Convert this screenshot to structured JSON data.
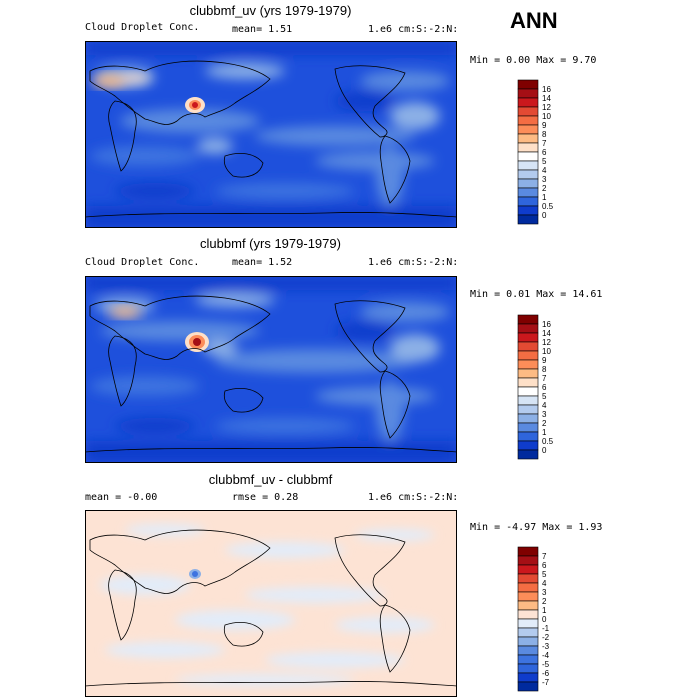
{
  "season": "ANN",
  "panels": [
    {
      "title": "clubbmf_uv (yrs 1979-1979)",
      "left_text": "Cloud Droplet Conc.",
      "mean_text": "mean=   1.51",
      "right_text": "1.e6 cm:S:-2:N:",
      "minmax_text": "Min =   0.00 Max =   9.70"
    },
    {
      "title": "clubbmf (yrs 1979-1979)",
      "left_text": "Cloud Droplet Conc.",
      "mean_text": "mean=   1.52",
      "right_text": "1.e6 cm:S:-2:N:",
      "minmax_text": "Min =  0.01 Max =  14.61"
    },
    {
      "title": "clubbmf_uv - clubbmf",
      "left_text": "mean =   -0.00",
      "mean_text": "rmse =   0.28",
      "right_text": "1.e6 cm:S:-2:N:",
      "minmax_text": "Min =  -4.97 Max =   1.93"
    }
  ],
  "chart_data": [
    {
      "type": "heatmap",
      "title": "clubbmf_uv (yrs 1979-1979)",
      "stats": {
        "mean": 1.51,
        "min": 0.0,
        "max": 9.7
      },
      "colorbar": {
        "labels": [
          "16",
          "14",
          "12",
          "10",
          "9",
          "8",
          "7",
          "6",
          "5",
          "4",
          "3",
          "2",
          "1",
          "0.5",
          "0"
        ],
        "colors": [
          "#7f0000",
          "#a50f15",
          "#cb181d",
          "#e34a33",
          "#f46d43",
          "#fc8d59",
          "#fdbb84",
          "#fee0c8",
          "#ffffff",
          "#d6e4f5",
          "#b3cbee",
          "#8cb0e6",
          "#5a8ae0",
          "#2f65dc",
          "#0f3ccc",
          "#002a9e"
        ]
      }
    },
    {
      "type": "heatmap",
      "title": "clubbmf (yrs 1979-1979)",
      "stats": {
        "mean": 1.52,
        "min": 0.01,
        "max": 14.61
      },
      "colorbar": {
        "labels": [
          "16",
          "14",
          "12",
          "10",
          "9",
          "8",
          "7",
          "6",
          "5",
          "4",
          "3",
          "2",
          "1",
          "0.5",
          "0"
        ],
        "colors": [
          "#7f0000",
          "#a50f15",
          "#cb181d",
          "#e34a33",
          "#f46d43",
          "#fc8d59",
          "#fdbb84",
          "#fee0c8",
          "#ffffff",
          "#d6e4f5",
          "#b3cbee",
          "#8cb0e6",
          "#5a8ae0",
          "#2f65dc",
          "#0f3ccc",
          "#002a9e"
        ]
      }
    },
    {
      "type": "heatmap",
      "title": "clubbmf_uv - clubbmf",
      "stats": {
        "mean": -0.0,
        "rmse": 0.28,
        "min": -4.97,
        "max": 1.93
      },
      "colorbar": {
        "labels": [
          "7",
          "6",
          "5",
          "4",
          "3",
          "2",
          "1",
          "0",
          "-1",
          "-2",
          "-3",
          "-4",
          "-5",
          "-6",
          "-7"
        ],
        "colors": [
          "#7f0000",
          "#a50f15",
          "#cb181d",
          "#e34a33",
          "#f46d43",
          "#fc8d59",
          "#fdbb84",
          "#fde3d4",
          "#e2ecf9",
          "#b3cbee",
          "#8cb0e6",
          "#5a8ae0",
          "#3d73e0",
          "#2f65dc",
          "#0f3ccc",
          "#002a9e"
        ]
      }
    }
  ]
}
